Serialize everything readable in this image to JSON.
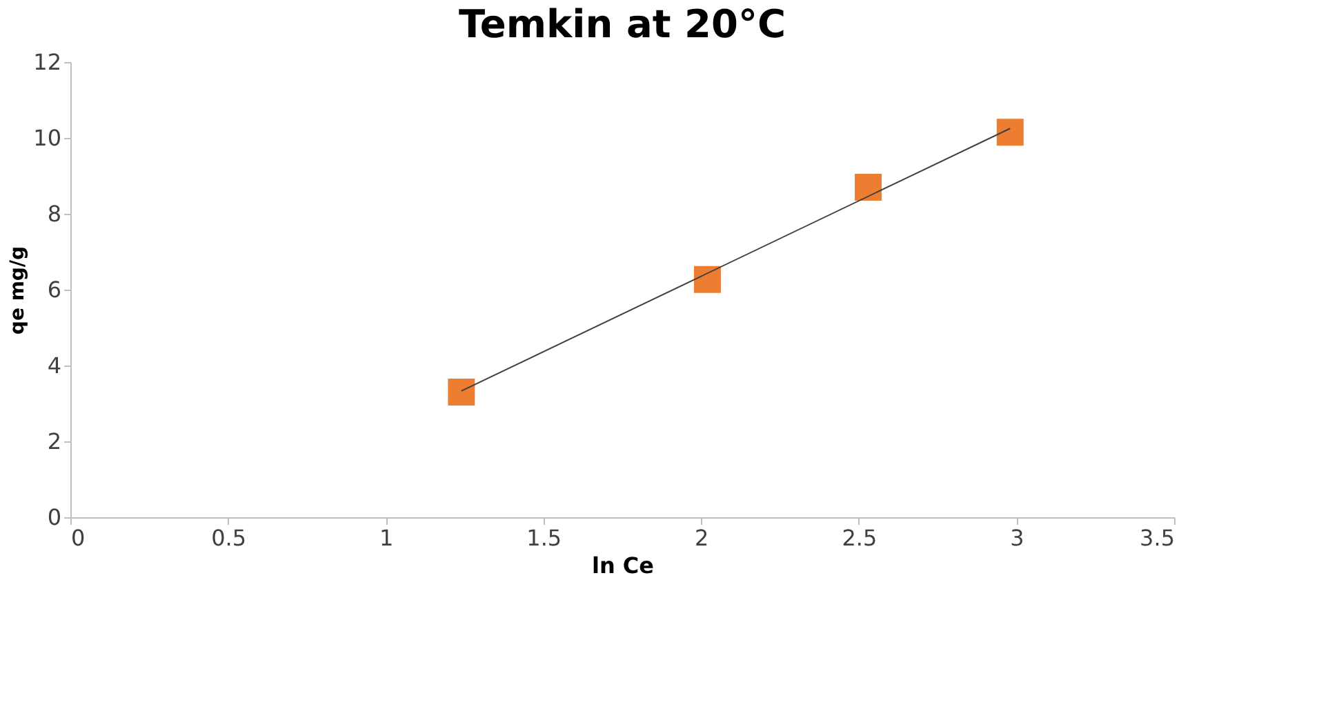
{
  "chart_data": {
    "type": "scatter",
    "title": "Temkin at 20°C",
    "xlabel": "ln Ce",
    "ylabel": "qe mg/g",
    "xlim": [
      0,
      3.5
    ],
    "xticks": [
      0,
      0.5,
      1,
      1.5,
      2,
      2.5,
      3,
      3.5
    ],
    "ylim": [
      0,
      12
    ],
    "yticks": [
      0,
      2,
      4,
      6,
      8,
      10,
      12
    ],
    "grid": false,
    "series": [
      {
        "marker": "square",
        "color": "#ed7d31",
        "x": [
          1.24,
          2.02,
          2.53,
          2.98
        ],
        "values": [
          3.3,
          6.27,
          8.7,
          10.15
        ]
      },
      {
        "type": "line",
        "marker": "none",
        "line_style": "solid",
        "color": "#404040",
        "x": [
          1.24,
          2.98
        ],
        "values": [
          3.33,
          10.25
        ]
      }
    ]
  }
}
